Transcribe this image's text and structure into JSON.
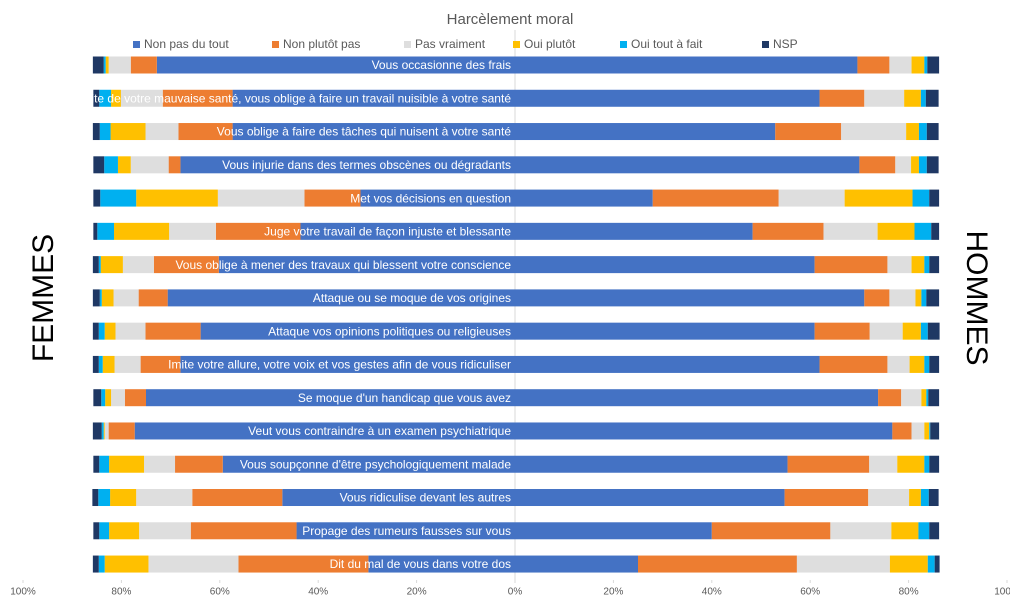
{
  "chart_data": {
    "type": "butterfly",
    "title": "Harcèlement moral",
    "left_label": "FEMMES",
    "right_label": "HOMMES",
    "categories": [
      "Vous occasionne des frais",
      "Profite de votre mauvaise santé, vous oblige à faire un travail nuisible à votre santé",
      "Vous oblige à faire des tâches qui nuisent à votre santé",
      "Vous injurie dans des termes obscènes ou dégradants",
      "Met vos décisions en question",
      "Juge votre travail de façon injuste et blessante",
      "Vous oblige à mener des travaux qui blessent votre conscience",
      "Attaque ou se moque de vos origines",
      "Attaque vos opinions politiques ou religieuses",
      "Imite votre allure, votre voix et vos gestes afin de vous ridiculiser",
      "Se moque d'un handicap que vous avez",
      "Veut vous contraindre à un examen psychiatrique",
      "Vous soupçonne d'être psychologiquement malade",
      "Vous ridiculise devant les autres",
      "Propage des rumeurs fausses sur vous",
      "Dit du mal de vous dans votre dos"
    ],
    "series": [
      {
        "name": "Non pas du tout",
        "color": "#4472c4",
        "femmes": [
          72.8,
          57.4,
          57.4,
          68,
          31.4,
          43.6,
          60.2,
          70.6,
          63.9,
          68,
          75,
          77.3,
          59.4,
          47.3,
          44.4,
          29.8
        ],
        "hommes": [
          69.6,
          61.9,
          52.9,
          70,
          28,
          48.3,
          60.9,
          71,
          60.9,
          61.9,
          73.8,
          76.7,
          55.4,
          54.8,
          40,
          25
        ]
      },
      {
        "name": "Non plutôt pas",
        "color": "#ed7d31",
        "femmes": [
          5.3,
          14.2,
          11,
          2.4,
          11.4,
          17.2,
          13.2,
          5.9,
          11.2,
          8.1,
          4.3,
          5.3,
          9.7,
          18.3,
          21.5,
          26.4
        ],
        "hommes": [
          6.5,
          9.1,
          13.4,
          7.3,
          25.6,
          14.4,
          14.8,
          5.1,
          11.2,
          13.8,
          4.7,
          3.9,
          16.6,
          17,
          24.1,
          32.3
        ]
      },
      {
        "name": "Pas vraiment",
        "color": "#dedede",
        "femmes": [
          4.5,
          8.5,
          6.7,
          7.7,
          17.6,
          9.5,
          6.3,
          5.1,
          6.1,
          5.3,
          2.8,
          0.8,
          6.3,
          11.4,
          10.5,
          18.3
        ],
        "hommes": [
          4.5,
          8.1,
          13.2,
          3.2,
          13.4,
          11,
          4.9,
          5.3,
          6.7,
          4.5,
          4.1,
          2.6,
          5.7,
          8.3,
          12.4,
          18.9
        ]
      },
      {
        "name": "Oui plutôt",
        "color": "#ffc000",
        "femmes": [
          0.6,
          2,
          7.1,
          2.6,
          16.6,
          11.2,
          4.5,
          2.4,
          2.2,
          2.4,
          1.2,
          0.2,
          7.1,
          5.3,
          6.1,
          8.9
        ],
        "hommes": [
          2.6,
          3.4,
          2.6,
          1.6,
          13.8,
          7.5,
          2.6,
          1.2,
          3.7,
          3,
          1,
          1,
          5.5,
          2.4,
          5.5,
          7.7
        ]
      },
      {
        "name": "Oui tout à fait",
        "color": "#00b0f0",
        "femmes": [
          0.4,
          2.4,
          2.2,
          2.8,
          7.3,
          3.4,
          0.4,
          0.4,
          1.2,
          0.8,
          0.8,
          0.4,
          2,
          2.4,
          2,
          1.2
        ],
        "hommes": [
          0.6,
          1,
          1.6,
          1.6,
          3.4,
          3.4,
          1,
          1,
          1.4,
          1,
          0.4,
          0.2,
          1,
          1.6,
          2.2,
          1.4
        ]
      },
      {
        "name": "NSP",
        "color": "#1f3864",
        "femmes": [
          2.2,
          1.2,
          1.4,
          2.2,
          1.4,
          0.8,
          1.2,
          1.4,
          1.2,
          1.2,
          1.6,
          1.8,
          1.2,
          1.2,
          1.2,
          1.2
        ],
        "hommes": [
          2.4,
          2.6,
          2.4,
          2.4,
          2,
          1.6,
          2,
          2.6,
          2.4,
          2,
          2.2,
          1.8,
          2,
          2,
          2,
          1
        ]
      }
    ],
    "xlim": [
      -100,
      100
    ],
    "xticks": [
      {
        "value": -100,
        "label": "100%"
      },
      {
        "value": -80,
        "label": "80%"
      },
      {
        "value": -60,
        "label": "60%"
      },
      {
        "value": -40,
        "label": "40%"
      },
      {
        "value": -20,
        "label": "20%"
      },
      {
        "value": 0,
        "label": "0%"
      },
      {
        "value": 20,
        "label": "20%"
      },
      {
        "value": 40,
        "label": "40%"
      },
      {
        "value": 60,
        "label": "60%"
      },
      {
        "value": 80,
        "label": "80%"
      },
      {
        "value": 100,
        "label": "100%"
      }
    ]
  }
}
